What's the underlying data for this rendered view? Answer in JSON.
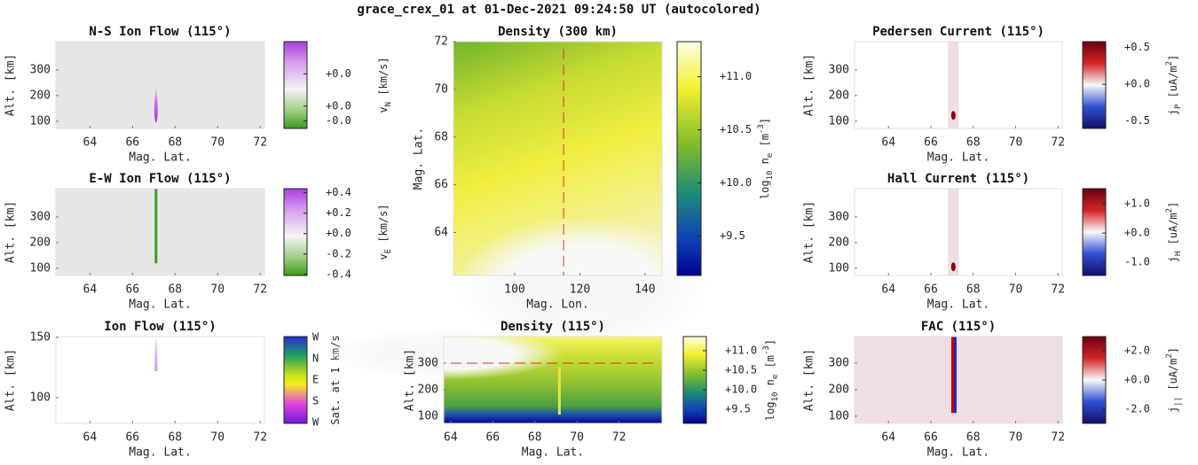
{
  "figure_title": "grace_crex_01 at 01-Dec-2021 09:24:50 UT (autocolored)",
  "chart_data": [
    {
      "type": "heatmap",
      "title": "N-S Ion Flow (115°)",
      "xlabel": "Mag. Lat.",
      "ylabel": "Alt. [km]",
      "xlim": [
        62.4,
        72.2
      ],
      "ylim": [
        72,
        410
      ],
      "xticks": [
        64,
        66,
        68,
        70,
        72
      ],
      "yticks": [
        100,
        200,
        300
      ],
      "colorbar": {
        "label": [
          {
            "t": "v"
          },
          {
            "t": "N",
            "s": "sub"
          },
          {
            "t": " [km/s]"
          }
        ],
        "clim": [
          -0.007,
          0.028
        ],
        "ticks": [
          {
            "value": 0.015,
            "label": "+0.0"
          },
          {
            "value": 0.002,
            "label": "+0.0"
          },
          {
            "value": -0.004,
            "label": "-0.0"
          }
        ],
        "colormap": "green-white-purple"
      }
    },
    {
      "type": "heatmap",
      "title": "E-W Ion Flow (115°)",
      "xlabel": "Mag. Lat.",
      "ylabel": "Alt. [km]",
      "xlim": [
        62.4,
        72.2
      ],
      "ylim": [
        72,
        410
      ],
      "xticks": [
        64,
        66,
        68,
        70,
        72
      ],
      "yticks": [
        100,
        200,
        300
      ],
      "colorbar": {
        "label": [
          {
            "t": "v"
          },
          {
            "t": "E",
            "s": "sub"
          },
          {
            "t": " [km/s]"
          }
        ],
        "clim": [
          -0.41,
          0.44
        ],
        "ticks": [
          {
            "value": 0.4,
            "label": "+0.4"
          },
          {
            "value": 0.2,
            "label": "+0.2"
          },
          {
            "value": 0.0,
            "label": "+0.0"
          },
          {
            "value": -0.2,
            "label": "-0.2"
          },
          {
            "value": -0.4,
            "label": "-0.4"
          }
        ],
        "colormap": "green-white-purple"
      }
    },
    {
      "type": "heatmap",
      "title": "Ion Flow (115°)",
      "xlabel": "Mag. Lat.",
      "ylabel": "Alt. [km]",
      "xlim": [
        62.4,
        72.2
      ],
      "ylim": [
        78.7,
        150.7
      ],
      "xticks": [
        64,
        66,
        68,
        70,
        72
      ],
      "yticks": [
        100,
        150
      ],
      "colorbar": {
        "label": [
          {
            "t": "Sat. at 1 km/s"
          }
        ],
        "ticks": [
          "W",
          "N",
          "E",
          "S",
          "W"
        ],
        "colormap": "direction"
      }
    },
    {
      "type": "heatmap",
      "title": "Density (300 km)",
      "xlabel": "Mag. Lon.",
      "ylabel": "Mag. Lat.",
      "xlim": [
        81.2,
        145.2
      ],
      "ylim": [
        62.2,
        72
      ],
      "xticks": [
        100,
        120,
        140
      ],
      "yticks": [
        64,
        66,
        68,
        70,
        72
      ],
      "marker_x": 115,
      "colorbar": {
        "label": [
          {
            "t": "log"
          },
          {
            "t": "10",
            "s": "sub"
          },
          {
            "t": " n"
          },
          {
            "t": "e",
            "s": "sub"
          },
          {
            "t": " [m"
          },
          {
            "t": "-3",
            "s": "sup"
          },
          {
            "t": "]"
          }
        ],
        "clim": [
          9.13,
          11.33
        ],
        "ticks": [
          {
            "value": 11.0,
            "label": "+11.0"
          },
          {
            "value": 10.5,
            "label": "+10.5"
          },
          {
            "value": 10.0,
            "label": "+10.0"
          },
          {
            "value": 9.5,
            "label": "+9.5"
          }
        ],
        "colormap": "density"
      }
    },
    {
      "type": "heatmap",
      "title": "Density (115°)",
      "xlabel": "Mag. Lat.",
      "ylabel": "Alt. [km]",
      "xlim": [
        63.67,
        74.04
      ],
      "ylim": [
        73,
        400
      ],
      "xticks": [
        64,
        66,
        68,
        70,
        72
      ],
      "yticks": [
        100,
        200,
        300
      ],
      "marker_y": 300,
      "colorbar": {
        "label": [
          {
            "t": "log"
          },
          {
            "t": "10",
            "s": "sub"
          },
          {
            "t": " n"
          },
          {
            "t": "e",
            "s": "sub"
          },
          {
            "t": " [m"
          },
          {
            "t": "-3",
            "s": "sup"
          },
          {
            "t": "]"
          }
        ],
        "clim": [
          9.14,
          11.36
        ],
        "ticks": [
          {
            "value": 11.0,
            "label": "+11.0"
          },
          {
            "value": 10.5,
            "label": "+10.5"
          },
          {
            "value": 10.0,
            "label": "+10.0"
          },
          {
            "value": 9.5,
            "label": "+9.5"
          }
        ],
        "colormap": "density"
      }
    },
    {
      "type": "heatmap",
      "title": "Pedersen Current (115°)",
      "xlabel": "Mag. Lat.",
      "ylabel": "Alt. [km]",
      "xlim": [
        62.4,
        72.2
      ],
      "ylim": [
        72,
        410
      ],
      "xticks": [
        64,
        66,
        68,
        70,
        72
      ],
      "yticks": [
        100,
        200,
        300
      ],
      "colorbar": {
        "label": [
          {
            "t": "j"
          },
          {
            "t": "P",
            "s": "sub"
          },
          {
            "t": " [uA/m"
          },
          {
            "t": "2",
            "s": "sup"
          },
          {
            "t": "]"
          }
        ],
        "clim": [
          -0.6,
          0.58
        ],
        "ticks": [
          {
            "value": 0.5,
            "label": "+0.5"
          },
          {
            "value": 0.0,
            "label": "+0.0"
          },
          {
            "value": -0.5,
            "label": "-0.5"
          }
        ],
        "colormap": "blue-white-red"
      }
    },
    {
      "type": "heatmap",
      "title": "Hall Current (115°)",
      "xlabel": "Mag. Lat.",
      "ylabel": "Alt. [km]",
      "xlim": [
        62.4,
        72.2
      ],
      "ylim": [
        72,
        410
      ],
      "xticks": [
        64,
        66,
        68,
        70,
        72
      ],
      "yticks": [
        100,
        200,
        300
      ],
      "colorbar": {
        "label": [
          {
            "t": "j"
          },
          {
            "t": "H",
            "s": "sub"
          },
          {
            "t": " [uA/m"
          },
          {
            "t": "2",
            "s": "sup"
          },
          {
            "t": "]"
          }
        ],
        "clim": [
          -1.45,
          1.52
        ],
        "ticks": [
          {
            "value": 1.0,
            "label": "+1.0"
          },
          {
            "value": 0.0,
            "label": "+0.0"
          },
          {
            "value": -1.0,
            "label": "-1.0"
          }
        ],
        "colormap": "blue-white-red"
      }
    },
    {
      "type": "heatmap",
      "title": "FAC (115°)",
      "xlabel": "Mag. Lat.",
      "ylabel": "Alt. [km]",
      "xlim": [
        62.4,
        72.2
      ],
      "ylim": [
        73,
        400
      ],
      "xticks": [
        64,
        66,
        68,
        70,
        72
      ],
      "yticks": [
        100,
        200,
        300
      ],
      "colorbar": {
        "label": [
          {
            "t": "j"
          },
          {
            "t": "||",
            "s": "sub"
          },
          {
            "t": " [uA/m"
          },
          {
            "t": "2",
            "s": "sup"
          },
          {
            "t": "]"
          }
        ],
        "clim": [
          -2.97,
          2.97
        ],
        "ticks": [
          {
            "value": 2.0,
            "label": "+2.0"
          },
          {
            "value": 0.0,
            "label": "+0.0"
          },
          {
            "value": -2.0,
            "label": "-2.0"
          }
        ],
        "colormap": "blue-white-red"
      }
    }
  ]
}
